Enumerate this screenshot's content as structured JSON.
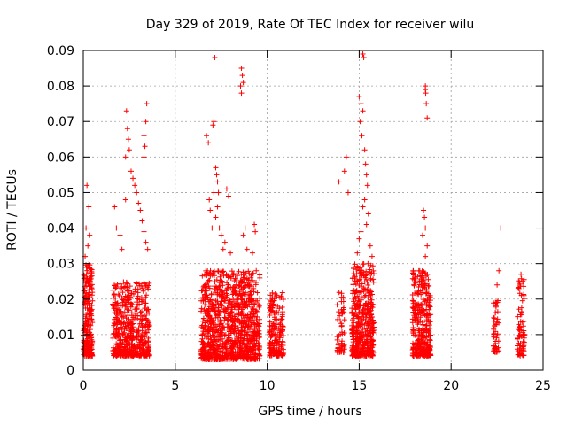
{
  "chart_data": {
    "type": "scatter",
    "title": "Day 329 of 2019, Rate Of TEC Index for receiver wilu",
    "xlabel": "GPS time / hours",
    "ylabel": "ROTI / TECUs",
    "xlim": [
      0,
      25
    ],
    "ylim": [
      0,
      0.09
    ],
    "x_ticks": [
      "0",
      "5",
      "10",
      "15",
      "20",
      "25"
    ],
    "y_ticks": [
      "0",
      "0.01",
      "0.02",
      "0.03",
      "0.04",
      "0.05",
      "0.06",
      "0.07",
      "0.08",
      "0.09"
    ],
    "grid": true,
    "marker": "+",
    "color": "#ff0000",
    "clusters": [
      {
        "x": [
          0.0,
          0.5
        ],
        "y": [
          0.004,
          0.03
        ],
        "n": 230
      },
      {
        "x": [
          1.6,
          3.6
        ],
        "y": [
          0.004,
          0.025
        ],
        "n": 520
      },
      {
        "x": [
          6.4,
          9.6
        ],
        "y": [
          0.003,
          0.028
        ],
        "n": 1050
      },
      {
        "x": [
          10.1,
          10.9
        ],
        "y": [
          0.004,
          0.022
        ],
        "n": 180
      },
      {
        "x": [
          13.8,
          14.2
        ],
        "y": [
          0.005,
          0.022
        ],
        "n": 60
      },
      {
        "x": [
          14.6,
          15.8
        ],
        "y": [
          0.004,
          0.03
        ],
        "n": 440
      },
      {
        "x": [
          17.9,
          18.9
        ],
        "y": [
          0.004,
          0.028
        ],
        "n": 330
      },
      {
        "x": [
          22.3,
          22.6
        ],
        "y": [
          0.005,
          0.02
        ],
        "n": 50
      },
      {
        "x": [
          23.6,
          24.0
        ],
        "y": [
          0.004,
          0.026
        ],
        "n": 80
      }
    ],
    "outliers": [
      [
        0.2,
        0.052
      ],
      [
        0.3,
        0.046
      ],
      [
        0.25,
        0.035
      ],
      [
        0.15,
        0.04
      ],
      [
        0.35,
        0.038
      ],
      [
        0.1,
        0.032
      ],
      [
        1.7,
        0.046
      ],
      [
        1.8,
        0.04
      ],
      [
        2.0,
        0.038
      ],
      [
        2.1,
        0.034
      ],
      [
        2.3,
        0.048
      ],
      [
        2.35,
        0.073
      ],
      [
        2.4,
        0.068
      ],
      [
        2.45,
        0.065
      ],
      [
        2.5,
        0.062
      ],
      [
        2.3,
        0.06
      ],
      [
        2.6,
        0.056
      ],
      [
        2.7,
        0.054
      ],
      [
        2.8,
        0.052
      ],
      [
        2.9,
        0.05
      ],
      [
        3.0,
        0.047
      ],
      [
        3.1,
        0.045
      ],
      [
        3.2,
        0.042
      ],
      [
        3.3,
        0.039
      ],
      [
        3.4,
        0.036
      ],
      [
        3.5,
        0.034
      ],
      [
        3.3,
        0.066
      ],
      [
        3.35,
        0.063
      ],
      [
        3.4,
        0.07
      ],
      [
        3.45,
        0.075
      ],
      [
        3.3,
        0.06
      ],
      [
        6.7,
        0.066
      ],
      [
        6.8,
        0.064
      ],
      [
        6.9,
        0.045
      ],
      [
        7.0,
        0.04
      ],
      [
        7.1,
        0.05
      ],
      [
        6.85,
        0.048
      ],
      [
        7.15,
        0.088
      ],
      [
        7.1,
        0.07
      ],
      [
        7.05,
        0.069
      ],
      [
        7.2,
        0.057
      ],
      [
        7.25,
        0.055
      ],
      [
        7.3,
        0.053
      ],
      [
        7.35,
        0.05
      ],
      [
        7.2,
        0.043
      ],
      [
        7.4,
        0.04
      ],
      [
        7.5,
        0.038
      ],
      [
        7.3,
        0.046
      ],
      [
        7.8,
        0.051
      ],
      [
        7.9,
        0.049
      ],
      [
        7.7,
        0.036
      ],
      [
        7.6,
        0.034
      ],
      [
        8.0,
        0.033
      ],
      [
        8.6,
        0.085
      ],
      [
        8.65,
        0.083
      ],
      [
        8.7,
        0.081
      ],
      [
        8.6,
        0.078
      ],
      [
        8.55,
        0.08
      ],
      [
        8.8,
        0.04
      ],
      [
        8.7,
        0.038
      ],
      [
        8.9,
        0.034
      ],
      [
        9.3,
        0.041
      ],
      [
        9.35,
        0.039
      ],
      [
        9.2,
        0.033
      ],
      [
        13.9,
        0.053
      ],
      [
        14.2,
        0.056
      ],
      [
        14.3,
        0.06
      ],
      [
        14.4,
        0.05
      ],
      [
        15.0,
        0.077
      ],
      [
        15.1,
        0.075
      ],
      [
        15.2,
        0.073
      ],
      [
        15.05,
        0.07
      ],
      [
        15.15,
        0.066
      ],
      [
        15.2,
        0.089
      ],
      [
        15.25,
        0.088
      ],
      [
        15.3,
        0.062
      ],
      [
        15.35,
        0.058
      ],
      [
        15.4,
        0.055
      ],
      [
        15.45,
        0.052
      ],
      [
        15.3,
        0.048
      ],
      [
        15.2,
        0.046
      ],
      [
        15.5,
        0.044
      ],
      [
        15.4,
        0.041
      ],
      [
        15.1,
        0.039
      ],
      [
        15.0,
        0.037
      ],
      [
        15.6,
        0.035
      ],
      [
        14.9,
        0.033
      ],
      [
        15.7,
        0.032
      ],
      [
        18.6,
        0.08
      ],
      [
        18.62,
        0.078
      ],
      [
        18.65,
        0.075
      ],
      [
        18.7,
        0.071
      ],
      [
        18.6,
        0.079
      ],
      [
        18.5,
        0.045
      ],
      [
        18.55,
        0.043
      ],
      [
        18.6,
        0.04
      ],
      [
        18.45,
        0.038
      ],
      [
        18.7,
        0.035
      ],
      [
        18.6,
        0.032
      ],
      [
        22.7,
        0.04
      ],
      [
        22.6,
        0.028
      ],
      [
        22.5,
        0.024
      ],
      [
        23.8,
        0.027
      ],
      [
        23.9,
        0.025
      ]
    ]
  }
}
